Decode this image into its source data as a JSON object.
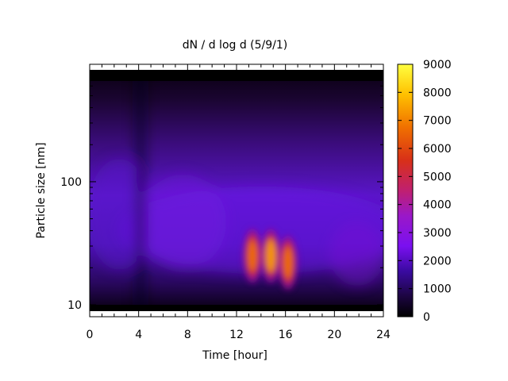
{
  "chart_data": {
    "type": "heatmap",
    "title": "dN / d log d (5/9/1)",
    "xlabel": "Time [hour]",
    "ylabel": "Particle size [nm]",
    "xlim": [
      0,
      24
    ],
    "ylim": [
      8,
      900
    ],
    "yscale": "log",
    "x_ticks": [
      0,
      4,
      8,
      12,
      16,
      20,
      24
    ],
    "y_ticks": [
      10,
      100
    ],
    "colorbar": {
      "range": [
        0,
        9000
      ],
      "ticks": [
        0,
        1000,
        2000,
        3000,
        4000,
        5000,
        6000,
        7000,
        8000,
        9000
      ],
      "colormap": "black-purple-red-yellow",
      "colors": [
        "#000000",
        "#3a0aa0",
        "#7a10f0",
        "#c02070",
        "#e04010",
        "#f08000",
        "#ffe000",
        "#ffff40"
      ]
    },
    "peaks": [
      {
        "time": 13.3,
        "size_nm": 25,
        "value": 6000
      },
      {
        "time": 14.8,
        "size_nm": 25,
        "value": 7500
      },
      {
        "time": 16.2,
        "size_nm": 22,
        "value": 6300
      }
    ],
    "grid": false,
    "legend": "colorbar-right"
  }
}
